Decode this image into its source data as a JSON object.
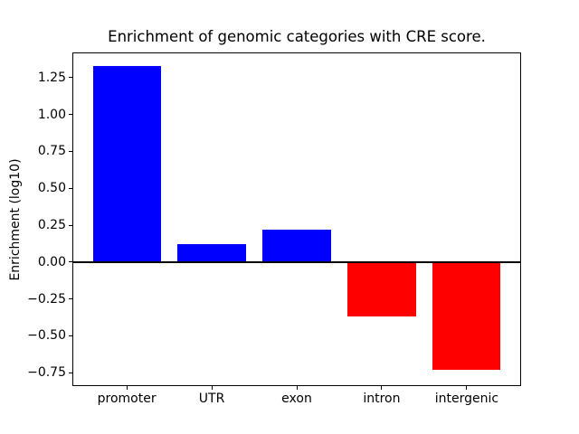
{
  "chart_data": {
    "type": "bar",
    "title": "Enrichment of genomic categories with CRE score.",
    "xlabel": "",
    "ylabel": "Enrichment (log10)",
    "categories": [
      "promoter",
      "UTR",
      "exon",
      "intron",
      "intergenic"
    ],
    "values": [
      1.33,
      0.12,
      0.22,
      -0.37,
      -0.73
    ],
    "bar_colors": [
      "#0000ff",
      "#0000ff",
      "#0000ff",
      "#ff0000",
      "#ff0000"
    ],
    "positive_color": "#0000ff",
    "negative_color": "#ff0000",
    "ylim": [
      -0.84,
      1.42
    ],
    "yticks": [
      1.25,
      1.0,
      0.75,
      0.5,
      0.25,
      0.0,
      -0.25,
      -0.5,
      -0.75
    ],
    "ytick_labels": [
      "1.25",
      "1.00",
      "0.75",
      "0.50",
      "0.25",
      "0.00",
      "−0.25",
      "−0.50",
      "−0.75"
    ],
    "bar_width_fraction": 0.8,
    "zero_line": true,
    "grid": false,
    "legend": null,
    "axis_color": "#000000",
    "background_color": "#ffffff"
  }
}
